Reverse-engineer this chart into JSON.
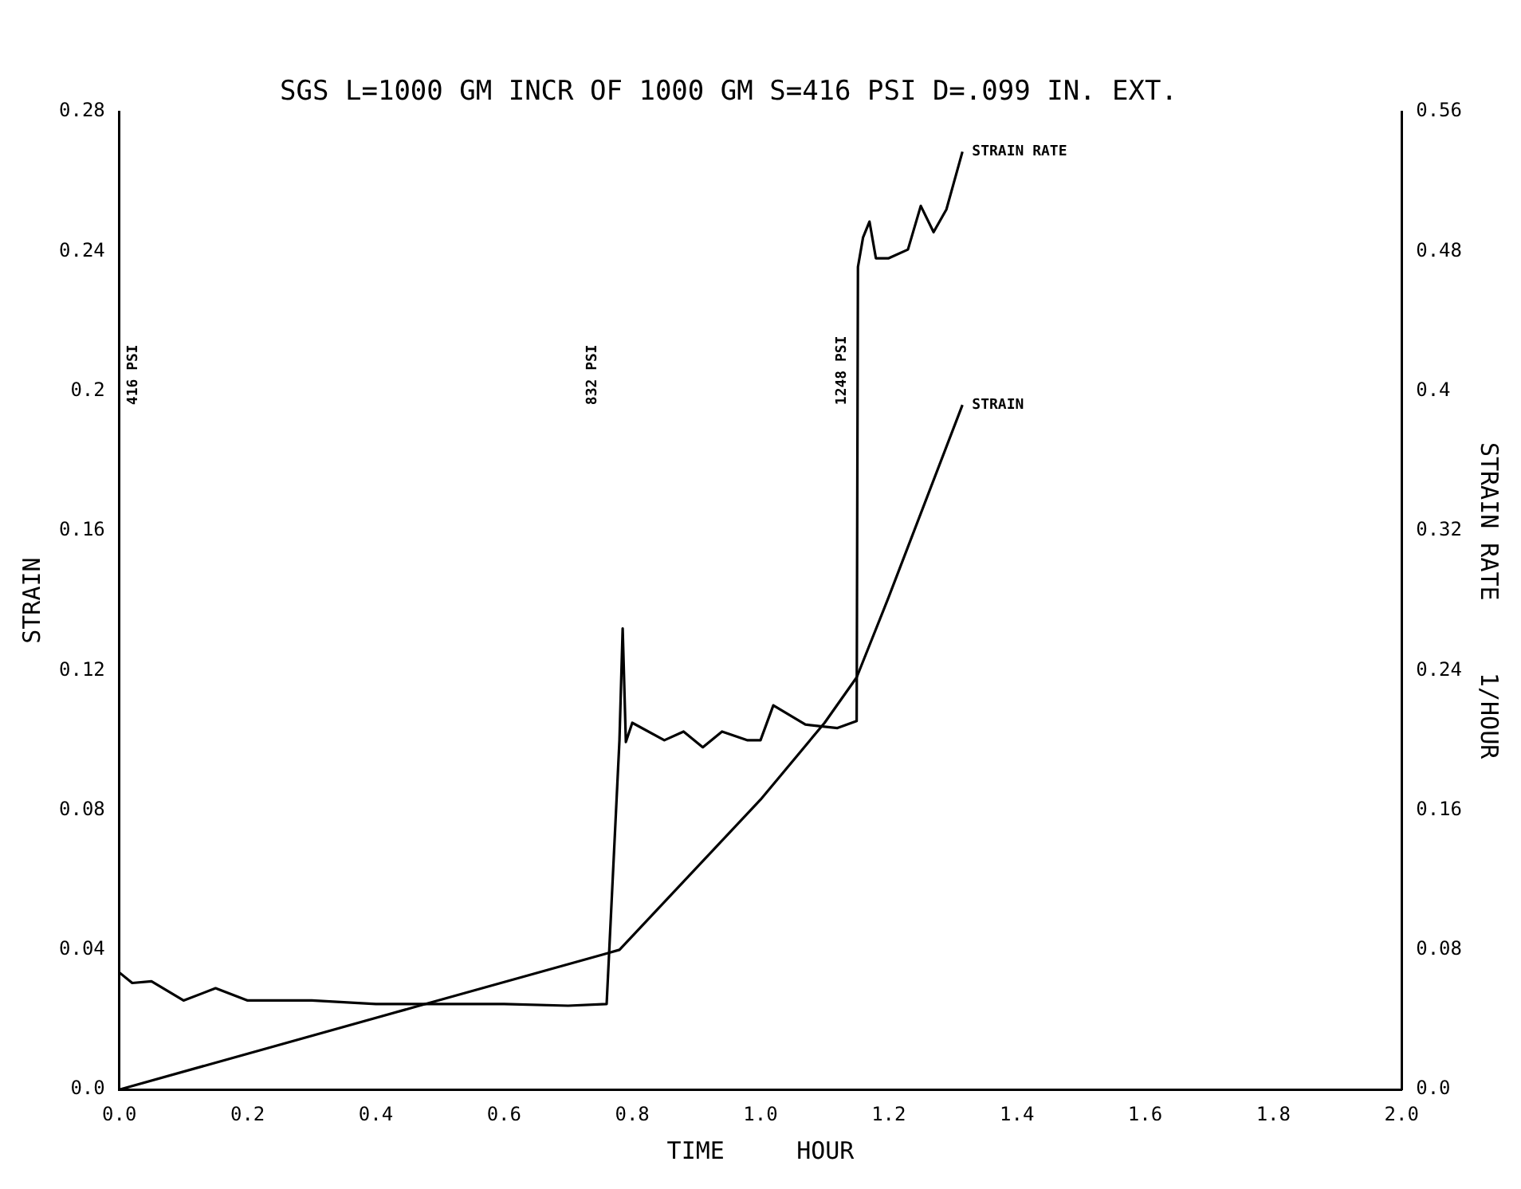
{
  "chart_data": {
    "type": "line",
    "title": "SGS L=1000 GM INCR OF 1000 GM S=416 PSI D=.099 IN. EXT.",
    "xlabel": "TIME     HOUR",
    "ylabel": "STRAIN",
    "y2label": "STRAIN RATE     1/HOUR",
    "xlim": [
      0,
      2
    ],
    "xticks": [
      {
        "value": 0,
        "label": "0.0"
      },
      0.2,
      0.4,
      0.6,
      0.8,
      {
        "value": 1,
        "label": "1.0"
      },
      1.2,
      1.4,
      1.6,
      1.8,
      {
        "value": 2,
        "label": "2.0"
      }
    ],
    "ylim": [
      0,
      0.28
    ],
    "yticks": [
      {
        "value": 0,
        "label": "0.0"
      },
      0.04,
      0.08,
      0.12,
      0.16,
      0.2,
      0.24,
      0.28
    ],
    "y2lim": [
      0,
      0.56
    ],
    "y2ticks": [
      {
        "value": 0,
        "label": "0.0"
      },
      0.08,
      0.16,
      0.24,
      0.32,
      0.4,
      0.48,
      0.56
    ],
    "grid": false,
    "legend": false,
    "marker": "none",
    "line_style": "solid",
    "series": [
      {
        "name": "STRAIN",
        "color": "#000000",
        "x": [
          0,
          0.46,
          0.78,
          1.0,
          1.1,
          1.15,
          1.2,
          1.315
        ],
        "values": [
          0,
          0.0236,
          0.04,
          0.083,
          0.105,
          0.118,
          0.141,
          0.196
        ]
      },
      {
        "name": "STRAIN RATE",
        "color": "#000000",
        "axis": "y2",
        "x": [
          0,
          0.02,
          0.05,
          0.1,
          0.15,
          0.2,
          0.3,
          0.4,
          0.5,
          0.6,
          0.7,
          0.76,
          0.78,
          0.785,
          0.79,
          0.8,
          0.85,
          0.88,
          0.91,
          0.94,
          0.98,
          1.0,
          1.02,
          1.07,
          1.12,
          1.15,
          1.152,
          1.16,
          1.17,
          1.18,
          1.2,
          1.23,
          1.25,
          1.27,
          1.29,
          1.315
        ],
        "values": [
          0.067,
          0.061,
          0.062,
          0.051,
          0.058,
          0.051,
          0.051,
          0.049,
          0.049,
          0.049,
          0.048,
          0.049,
          0.2,
          0.264,
          0.199,
          0.21,
          0.2,
          0.205,
          0.196,
          0.205,
          0.2,
          0.2,
          0.22,
          0.209,
          0.207,
          0.211,
          0.471,
          0.488,
          0.497,
          0.476,
          0.476,
          0.481,
          0.506,
          0.491,
          0.504,
          0.537
        ]
      }
    ],
    "annotations": [
      "416 PSI",
      "832 PSI",
      "1248 PSI"
    ]
  }
}
